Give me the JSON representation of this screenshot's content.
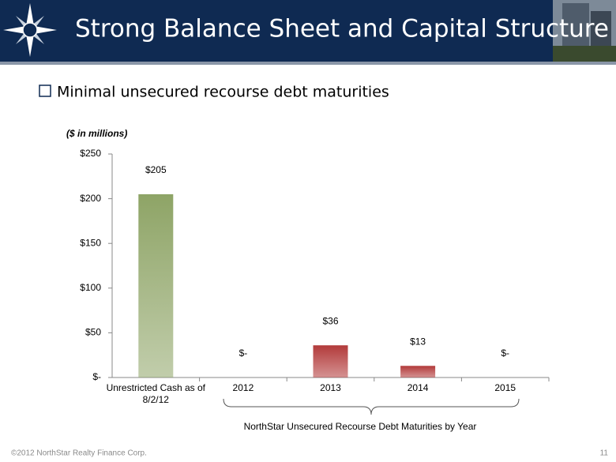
{
  "header": {
    "title": "Strong Balance Sheet and Capital Structure"
  },
  "bullet": "Minimal unsecured recourse debt maturities",
  "footer": "©2012 NorthStar Realty Finance Corp.",
  "page_number": "11",
  "chart_data": {
    "type": "bar",
    "subtitle": "($ in millions)",
    "categories": [
      "Unrestricted Cash as of 8/2/12",
      "2012",
      "2013",
      "2014",
      "2015"
    ],
    "values": [
      205,
      0,
      36,
      13,
      0
    ],
    "value_labels": [
      "$205",
      "$-",
      "$36",
      "$13",
      "$-"
    ],
    "colors": [
      "#8ea466",
      "#b23a3a",
      "#b23a3a",
      "#b23a3a",
      "#b23a3a"
    ],
    "ylim": [
      0,
      250
    ],
    "yticks": [
      {
        "value": 0,
        "label": "$-"
      },
      {
        "value": 50,
        "label": "$50"
      },
      {
        "value": 100,
        "label": "$100"
      },
      {
        "value": 150,
        "label": "$150"
      },
      {
        "value": 200,
        "label": "$200"
      },
      {
        "value": 250,
        "label": "$250"
      }
    ],
    "annotation": "NorthStar Unsecured Recourse Debt Maturities by Year"
  }
}
